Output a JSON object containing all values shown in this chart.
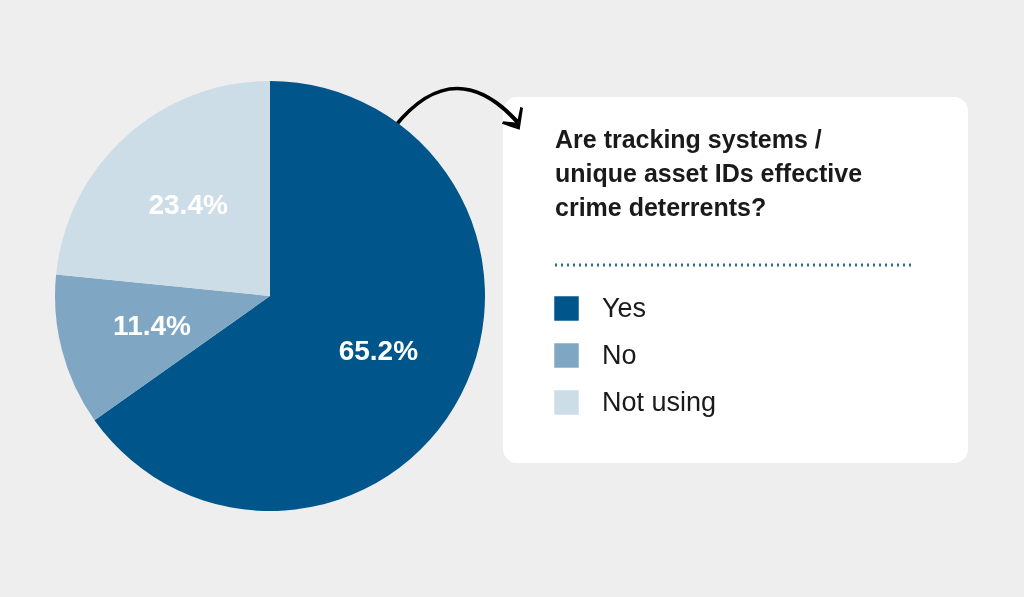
{
  "chart_data": {
    "type": "pie",
    "title": "Are tracking systems / unique asset IDs effective crime deterrents?",
    "categories": [
      "Yes",
      "No",
      "Not using"
    ],
    "values": [
      65.2,
      11.4,
      23.4
    ],
    "colors": [
      "#00568a",
      "#7fa7c4",
      "#cddde8"
    ],
    "value_labels": [
      "65.2%",
      "11.4%",
      "23.4%"
    ],
    "legend": "right"
  }
}
